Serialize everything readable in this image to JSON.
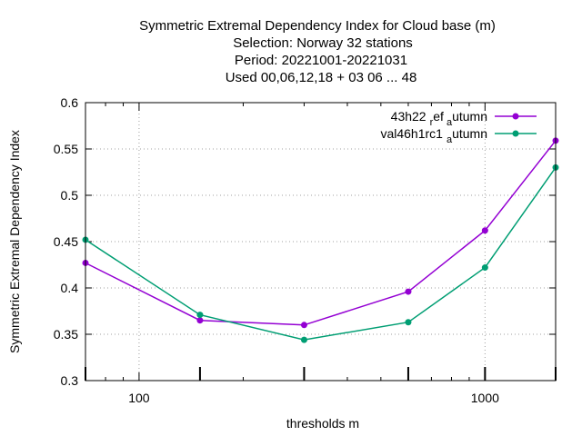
{
  "chart_data": {
    "type": "line",
    "title_lines": [
      "Symmetric Extremal Dependency Index  for Cloud base (m)",
      "Selection: Norway     32 stations",
      "Period: 20221001-20221031",
      "Used  00,06,12,18  + 03 06 ... 48"
    ],
    "xlabel": "thresholds m",
    "ylabel": "Symmetric Extremal Dependency Index",
    "xscale": "log",
    "xlim": [
      70,
      1600
    ],
    "ylim": [
      0.3,
      0.6
    ],
    "yticks": [
      0.3,
      0.35,
      0.4,
      0.45,
      0.5,
      0.55,
      0.6
    ],
    "ytick_labels": [
      "0.3",
      "0.35",
      "0.4",
      "0.45",
      "0.5",
      "0.55",
      "0.6"
    ],
    "xticks_major": [
      100,
      1000
    ],
    "xtick_labels": [
      "100",
      "1000"
    ],
    "grid": true,
    "legend_position": "top-right",
    "series": [
      {
        "name_main": "43h22",
        "name_sub1": "r",
        "name_mid": "ef",
        "name_sub2": "a",
        "name_end": "utumn",
        "color": "#9400d3",
        "x": [
          70,
          150,
          300,
          600,
          1000,
          1600
        ],
        "y": [
          0.427,
          0.365,
          0.36,
          0.396,
          0.462,
          0.559
        ]
      },
      {
        "name_main": "val46h1rc1",
        "name_sub1": "",
        "name_mid": "",
        "name_sub2": "a",
        "name_end": "utumn",
        "color": "#009e73",
        "x": [
          70,
          150,
          300,
          600,
          1000,
          1600
        ],
        "y": [
          0.452,
          0.371,
          0.344,
          0.363,
          0.422,
          0.53
        ]
      }
    ]
  }
}
